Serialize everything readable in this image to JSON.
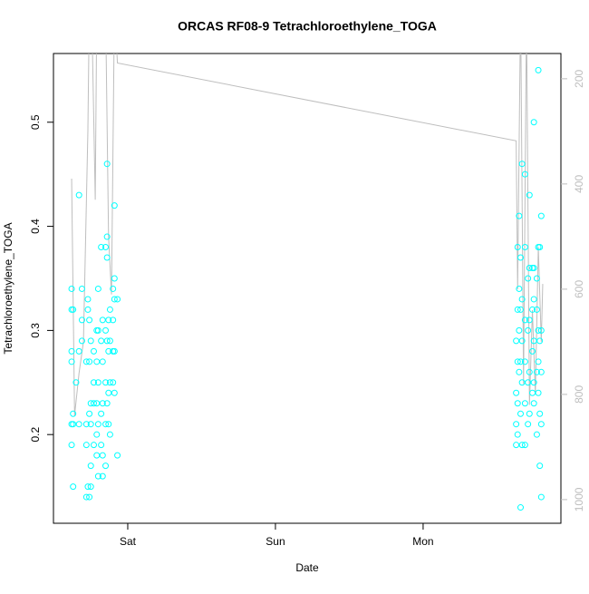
{
  "chart_data": {
    "type": "scatter",
    "title": "ORCAS RF08-9 Tetrachloroethylene_TOGA",
    "x_label": "Date",
    "y_label": "Tetrachloroethylene_TOGA",
    "xlim": [
      -0.503,
      2.933
    ],
    "xticks": [
      {
        "value": 0,
        "label": "Sat"
      },
      {
        "value": 1,
        "label": "Sun"
      },
      {
        "value": 2,
        "label": "Mon"
      }
    ],
    "ylim": [
      0.1148,
      0.566
    ],
    "yticks": [
      0.2,
      0.3,
      0.4,
      0.5
    ],
    "y2lim": [
      1045,
      152
    ],
    "y2ticks": [
      200,
      400,
      600,
      800,
      1000
    ],
    "series": [
      {
        "color": "#00ffff",
        "x": [
          -0.38,
          -0.38,
          -0.38,
          -0.38,
          -0.38,
          -0.38,
          -0.37,
          -0.37,
          -0.37,
          -0.37,
          -0.35,
          -0.33,
          -0.33,
          -0.33,
          -0.31,
          -0.31,
          -0.31,
          -0.28,
          -0.28,
          -0.28,
          -0.28,
          -0.27,
          -0.27,
          -0.27,
          -0.26,
          -0.26,
          -0.26,
          -0.26,
          -0.25,
          -0.25,
          -0.25,
          -0.25,
          -0.25,
          -0.23,
          -0.23,
          -0.23,
          -0.23,
          -0.21,
          -0.21,
          -0.21,
          -0.21,
          -0.21,
          -0.2,
          -0.2,
          -0.2,
          -0.2,
          -0.2,
          -0.18,
          -0.18,
          -0.18,
          -0.18,
          -0.17,
          -0.17,
          -0.17,
          -0.17,
          -0.17,
          -0.15,
          -0.15,
          -0.15,
          -0.15,
          -0.15,
          -0.14,
          -0.14,
          -0.14,
          -0.14,
          -0.14,
          -0.13,
          -0.13,
          -0.13,
          -0.13,
          -0.12,
          -0.12,
          -0.12,
          -0.12,
          -0.1,
          -0.1,
          -0.1,
          -0.1,
          -0.09,
          -0.09,
          -0.09,
          -0.09,
          -0.09,
          -0.07,
          -0.07,
          2.63,
          2.63,
          2.63,
          2.63,
          2.64,
          2.64,
          2.64,
          2.64,
          2.64,
          2.65,
          2.65,
          2.65,
          2.65,
          2.66,
          2.66,
          2.66,
          2.66,
          2.66,
          2.67,
          2.67,
          2.67,
          2.67,
          2.67,
          2.69,
          2.69,
          2.69,
          2.69,
          2.69,
          2.69,
          2.71,
          2.71,
          2.71,
          2.71,
          2.72,
          2.72,
          2.72,
          2.72,
          2.72,
          2.74,
          2.74,
          2.74,
          2.74,
          2.75,
          2.75,
          2.75,
          2.75,
          2.75,
          2.75,
          2.77,
          2.77,
          2.77,
          2.77,
          2.78,
          2.78,
          2.78,
          2.78,
          2.78,
          2.79,
          2.79,
          2.79,
          2.79,
          2.8,
          2.8,
          2.8,
          2.8,
          2.8
        ],
        "values": [
          0.32,
          0.34,
          0.28,
          0.27,
          0.21,
          0.19,
          0.32,
          0.22,
          0.21,
          0.15,
          0.25,
          0.43,
          0.28,
          0.21,
          0.34,
          0.31,
          0.29,
          0.14,
          0.19,
          0.21,
          0.27,
          0.33,
          0.32,
          0.15,
          0.31,
          0.27,
          0.22,
          0.14,
          0.29,
          0.23,
          0.21,
          0.15,
          0.17,
          0.28,
          0.25,
          0.23,
          0.19,
          0.3,
          0.27,
          0.23,
          0.18,
          0.2,
          0.34,
          0.3,
          0.25,
          0.21,
          0.16,
          0.38,
          0.29,
          0.22,
          0.19,
          0.31,
          0.27,
          0.23,
          0.18,
          0.16,
          0.38,
          0.3,
          0.25,
          0.21,
          0.17,
          0.46,
          0.39,
          0.37,
          0.29,
          0.23,
          0.31,
          0.28,
          0.24,
          0.21,
          0.32,
          0.29,
          0.25,
          0.2,
          0.34,
          0.31,
          0.28,
          0.25,
          0.42,
          0.35,
          0.33,
          0.28,
          0.24,
          0.33,
          0.18,
          0.29,
          0.24,
          0.21,
          0.19,
          0.38,
          0.32,
          0.27,
          0.23,
          0.2,
          0.41,
          0.34,
          0.3,
          0.26,
          0.37,
          0.32,
          0.27,
          0.22,
          0.13,
          0.46,
          0.33,
          0.29,
          0.25,
          0.19,
          0.45,
          0.38,
          0.31,
          0.27,
          0.23,
          0.19,
          0.35,
          0.3,
          0.25,
          0.21,
          0.43,
          0.36,
          0.31,
          0.26,
          0.22,
          0.36,
          0.32,
          0.28,
          0.24,
          0.5,
          0.36,
          0.33,
          0.29,
          0.25,
          0.23,
          0.35,
          0.32,
          0.26,
          0.2,
          0.55,
          0.38,
          0.3,
          0.27,
          0.24,
          0.38,
          0.29,
          0.22,
          0.17,
          0.41,
          0.3,
          0.26,
          0.21,
          0.14
        ]
      },
      {
        "type": "line",
        "color": "#bebebe",
        "axis": "y2",
        "x": [
          -0.38,
          -0.36,
          -0.33,
          -0.3,
          -0.27,
          -0.26,
          -0.24,
          -0.22,
          -0.21,
          -0.19,
          -0.17,
          -0.15,
          -0.13,
          -0.11,
          -0.09,
          -0.07,
          2.63,
          2.64,
          2.66,
          2.68,
          2.7,
          2.72,
          2.74,
          2.76,
          2.78,
          2.8,
          2.81
        ],
        "values": [
          390,
          840,
          760,
          700,
          300,
          60,
          130,
          430,
          80,
          100,
          90,
          70,
          500,
          610,
          60,
          170,
          318,
          600,
          60,
          780,
          70,
          820,
          640,
          800,
          520,
          700,
          590
        ]
      }
    ]
  }
}
